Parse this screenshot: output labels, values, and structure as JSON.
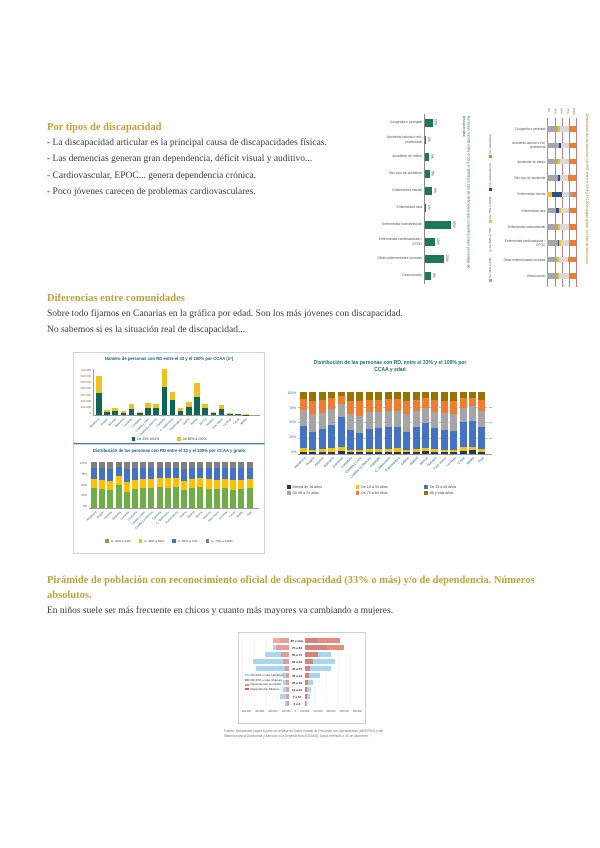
{
  "page": {
    "section1": {
      "heading": "Por tipos de discapacidad",
      "bullets": [
        "- La discapacidad articular es la principal causa de discapacidades físicas.",
        "- Las demencias generan gran dependencia, déficit visual y auditivo...",
        "- Cardiovascular, EPOC... genera dependencia crónica.",
        "- Poco jóvenes carecen de problemas cardiovasculares."
      ]
    },
    "section2": {
      "heading": "Diferencias entre comunidades",
      "lines": [
        "Sobre todo fijamos en Canarias en la gráfica por edad. Son los más jóvenes con discapacidad.",
        "No sabemos si es la situación real de discapacidad..."
      ]
    },
    "section3": {
      "heading": "Pirámide de población con reconocimiento oficial de discapacidad (33% o más) y/o de dependencia. Números absolutos.",
      "line": "En niños suele ser más frecuente en chicos y cuanto más mayores va cambiando a mujeres."
    },
    "caption": [
      "Fuente: elaboración propia a partir de la Base de Datos Estatal de Personas con Discapacidad (IMSERSO) y del",
      "Sistema para la Autonomía y Atención a la Dependencia (SISAAD). Datos referidos a 31 de diciembre."
    ]
  },
  "colors": {
    "heading_gold": "#C2A23A",
    "body_text": "#3A3A3A",
    "chart_title_teal": "#1F6E77",
    "green_bar": "#1B7A55"
  },
  "chart_data": [
    {
      "id": "deficiency_bar",
      "type": "bar",
      "orientation": "horizontal",
      "title": "Personas con RD entre el 33 y el 100% por tipo de deficiencia que concentra mayor porcentaje de discapacidad",
      "categories": [
        "Congénita o perinatal",
        "Accidente laboral o enf. profesional",
        "Accidente de tráfico",
        "Otro tipo de accidente",
        "Enfermedad mental",
        "Enfermedad rara",
        "Enfermedad osteoarticular",
        "Enfermedad cardiovascular / EPOC",
        "Otras enfermedades crónicas",
        "Desconocido"
      ],
      "values": [
        10,
        1,
        5,
        6,
        9,
        1,
        35,
        13,
        25,
        8
      ],
      "value_suffix": "%",
      "bar_color": "#1B7A55"
    },
    {
      "id": "deficiency_stacked",
      "type": "bar-stacked-100",
      "orientation": "horizontal",
      "title": "Distribución de las personas con RD entre el 33% y el 100% según grado, por tipo de deficiencia",
      "ticks": [
        "0%",
        "25%",
        "50%",
        "75%",
        "100%"
      ],
      "categories": [
        "Congénita o perinatal",
        "Accidente laboral o enf. profesional",
        "Accidente de tráfico",
        "Otro tipo de accidente",
        "Enfermedad mental",
        "Enfermedad rara",
        "Enfermedad osteoarticular",
        "Enfermedad cardiovascular / EPOC",
        "Otras enfermedades crónicas",
        "Desconocido"
      ],
      "rows": [
        [
          {
            "c": "#A6A6A6",
            "v": 36
          },
          {
            "c": "#FFC000",
            "v": 8
          },
          {
            "c": "#D9D9D9",
            "v": 30
          },
          {
            "c": "#ED7D31",
            "v": 26
          }
        ],
        [
          {
            "c": "#A6A6A6",
            "v": 40
          },
          {
            "c": "#2E4B8F",
            "v": 6
          },
          {
            "c": "#D9D9D9",
            "v": 28
          },
          {
            "c": "#ED7D31",
            "v": 26
          }
        ],
        [
          {
            "c": "#A6A6A6",
            "v": 38
          },
          {
            "c": "#FFC000",
            "v": 6
          },
          {
            "c": "#D9D9D9",
            "v": 30
          },
          {
            "c": "#ED7D31",
            "v": 26
          }
        ],
        [
          {
            "c": "#A6A6A6",
            "v": 36
          },
          {
            "c": "#2E4B8F",
            "v": 8
          },
          {
            "c": "#D9D9D9",
            "v": 28
          },
          {
            "c": "#ED7D31",
            "v": 28
          }
        ],
        [
          {
            "c": "#FFC000",
            "v": 16
          },
          {
            "c": "#2E4B8F",
            "v": 34
          },
          {
            "c": "#D9D9D9",
            "v": 26
          },
          {
            "c": "#A6A6A6",
            "v": 10
          },
          {
            "c": "#ED7D31",
            "v": 14
          }
        ],
        [
          {
            "c": "#A6A6A6",
            "v": 30
          },
          {
            "c": "#2E4B8F",
            "v": 12
          },
          {
            "c": "#FFC000",
            "v": 6
          },
          {
            "c": "#D9D9D9",
            "v": 26
          },
          {
            "c": "#ED7D31",
            "v": 26
          }
        ],
        [
          {
            "c": "#A6A6A6",
            "v": 38
          },
          {
            "c": "#FFC000",
            "v": 6
          },
          {
            "c": "#D9D9D9",
            "v": 30
          },
          {
            "c": "#ED7D31",
            "v": 26
          }
        ],
        [
          {
            "c": "#A6A6A6",
            "v": 36
          },
          {
            "c": "#2E4B8F",
            "v": 6
          },
          {
            "c": "#FFC000",
            "v": 6
          },
          {
            "c": "#D9D9D9",
            "v": 26
          },
          {
            "c": "#ED7D31",
            "v": 26
          }
        ],
        [
          {
            "c": "#A6A6A6",
            "v": 34
          },
          {
            "c": "#FFC000",
            "v": 8
          },
          {
            "c": "#D9D9D9",
            "v": 30
          },
          {
            "c": "#ED7D31",
            "v": 28
          }
        ],
        [
          {
            "c": "#A6A6A6",
            "v": 36
          },
          {
            "c": "#FFC000",
            "v": 6
          },
          {
            "c": "#D9D9D9",
            "v": 32
          },
          {
            "c": "#ED7D31",
            "v": 26
          }
        ]
      ],
      "legend": [
        {
          "label": "De 33% a 64%",
          "color": "#A6A6A6"
        },
        {
          "label": "De 65% a 74%",
          "color": "#D9D9D9"
        },
        {
          "label": "De 75% a 100%",
          "color": "#FFC000"
        },
        {
          "label": "Con dependencia",
          "color": "#2E4B8F"
        },
        {
          "label": "Sin especificar",
          "color": "#ED7D31"
        }
      ]
    },
    {
      "id": "ccaa_totals",
      "type": "bar-stacked",
      "orientation": "vertical",
      "title": "Número de personas con RD entre el 33 y el 100% por CCAA (nº)",
      "y_ticks": [
        "700.000",
        "600.000",
        "500.000",
        "400.000",
        "300.000",
        "200.000",
        "100.000",
        "0"
      ],
      "ymax": 700,
      "categories": [
        "Andalucía",
        "Aragón",
        "Asturias",
        "Baleares",
        "Canarias",
        "Cantabria",
        "Castilla y León",
        "Castilla-La Mancha",
        "Cataluña",
        "C. Valenciana",
        "Extremadura",
        "Galicia",
        "Madrid",
        "Murcia",
        "Navarra",
        "País Vasco",
        "La Rioja",
        "Ceuta",
        "Melilla"
      ],
      "series": [
        {
          "name": "De 33% a 64%",
          "color": "#0E6655",
          "values": [
            330,
            45,
            60,
            35,
            95,
            30,
            105,
            100,
            420,
            230,
            60,
            120,
            270,
            105,
            30,
            90,
            20,
            8,
            7
          ]
        },
        {
          "name": "De 65% a 100%",
          "color": "#F0C020",
          "values": [
            260,
            35,
            45,
            25,
            75,
            22,
            85,
            75,
            280,
            120,
            45,
            85,
            210,
            70,
            20,
            65,
            12,
            5,
            5
          ]
        }
      ]
    },
    {
      "id": "ccaa_age",
      "type": "bar-stacked-100",
      "orientation": "vertical",
      "title": "Distribución de las personas con RD, entre el 33% y el 100% por CCAA y edad",
      "y_ticks": [
        "100%",
        "75%",
        "50%",
        "25%",
        "0%"
      ],
      "categories": [
        "Andalucía",
        "Aragón",
        "Asturias",
        "Baleares",
        "Canarias",
        "Cantabria",
        "Castilla y León",
        "Castilla-La Mancha",
        "Cataluña",
        "C. Valenciana",
        "Extremadura",
        "Galicia",
        "Madrid",
        "Murcia",
        "Navarra",
        "País Vasco",
        "La Rioja",
        "Ceuta",
        "Melilla",
        "Total"
      ],
      "series": [
        {
          "name": "Menos de 16 años",
          "color": "#1F3864",
          "values": [
            4,
            3,
            4,
            4,
            5,
            3,
            3,
            4,
            4,
            4,
            4,
            3,
            4,
            5,
            4,
            3,
            3,
            5,
            6,
            4
          ]
        },
        {
          "name": "De 16 a 34 años",
          "color": "#FFC000",
          "values": [
            5,
            3,
            4,
            5,
            6,
            3,
            3,
            4,
            4,
            4,
            5,
            3,
            4,
            5,
            4,
            3,
            3,
            6,
            6,
            4
          ]
        },
        {
          "name": "De 35 a 64 años",
          "color": "#4472C4",
          "values": [
            36,
            30,
            32,
            38,
            48,
            32,
            28,
            33,
            34,
            36,
            35,
            30,
            35,
            40,
            34,
            33,
            31,
            40,
            42,
            35
          ]
        },
        {
          "name": "De 65 a 74 años",
          "color": "#A5A5A5",
          "values": [
            26,
            28,
            27,
            26,
            22,
            27,
            28,
            27,
            26,
            26,
            26,
            28,
            26,
            24,
            26,
            27,
            28,
            24,
            23,
            26
          ]
        },
        {
          "name": "De 75 a 84 años",
          "color": "#ED7D31",
          "values": [
            18,
            22,
            20,
            17,
            13,
            21,
            23,
            19,
            19,
            18,
            18,
            22,
            18,
            16,
            19,
            20,
            21,
            15,
            14,
            19
          ]
        },
        {
          "name": "85 y más años",
          "color": "#997300",
          "values": [
            11,
            14,
            13,
            10,
            6,
            14,
            15,
            13,
            13,
            12,
            12,
            14,
            13,
            10,
            13,
            14,
            14,
            10,
            9,
            12
          ]
        }
      ]
    },
    {
      "id": "ccaa_grade",
      "type": "bar-stacked-100",
      "orientation": "vertical",
      "title": "Distribución de las personas con RD entre el 33 y el 100% por CCAA y grado",
      "y_ticks": [
        "100%",
        "75%",
        "50%",
        "25%",
        "0%"
      ],
      "categories": [
        "Andalucía",
        "Aragón",
        "Asturias",
        "Baleares",
        "Canarias",
        "Cantabria",
        "Castilla y León",
        "Castilla-La Mancha",
        "Cataluña",
        "C. Valenciana",
        "Extremadura",
        "Galicia",
        "Madrid",
        "Murcia",
        "Navarra",
        "País Vasco",
        "La Rioja",
        "Ceuta",
        "Melilla",
        "Total"
      ],
      "series": [
        {
          "name": "G. 33% a 44%",
          "color": "#70AD47",
          "values": [
            44,
            42,
            40,
            50,
            34,
            42,
            44,
            43,
            45,
            44,
            46,
            40,
            44,
            46,
            42,
            41,
            43,
            40,
            42,
            44
          ]
        },
        {
          "name": "G. 45% a 64%",
          "color": "#FFC000",
          "values": [
            20,
            20,
            19,
            20,
            22,
            20,
            20,
            20,
            20,
            21,
            20,
            19,
            20,
            20,
            21,
            20,
            20,
            21,
            20,
            20
          ]
        },
        {
          "name": "G. 65% a 74%",
          "color": "#4472C4",
          "values": [
            23,
            24,
            26,
            19,
            28,
            24,
            22,
            23,
            22,
            22,
            21,
            26,
            22,
            21,
            23,
            25,
            23,
            25,
            24,
            23
          ]
        },
        {
          "name": "G. 75% a 100%",
          "color": "#7F7F7F",
          "values": [
            13,
            14,
            15,
            11,
            16,
            14,
            14,
            14,
            13,
            13,
            13,
            15,
            14,
            13,
            14,
            14,
            14,
            14,
            14,
            13
          ]
        }
      ]
    },
    {
      "id": "pyramid",
      "type": "pyramid",
      "unit": "personas",
      "xmax": 500,
      "age_groups": [
        "85 y más",
        "75 a 84",
        "65 a 74",
        "55 a 64",
        "45 a 54",
        "35 a 44",
        "25 a 34",
        "16 a 24",
        "7 a 15",
        "0 a 6"
      ],
      "series": [
        {
          "name": "RD 33% o más. Hombres",
          "side": "left",
          "kind": "rd",
          "color": "#A9D6EE",
          "values": [
            90,
            150,
            230,
            340,
            310,
            180,
            110,
            90,
            90,
            35
          ]
        },
        {
          "name": "Dependencia. Hombres",
          "side": "left",
          "kind": "dep",
          "color": "#F0907E",
          "values": [
            150,
            120,
            80,
            60,
            40,
            30,
            25,
            25,
            30,
            15
          ]
        },
        {
          "name": "RD 33% o más. Mujeres",
          "side": "right",
          "kind": "rd",
          "color": "#A9D6EE",
          "values": [
            120,
            210,
            250,
            290,
            250,
            140,
            80,
            60,
            50,
            20
          ]
        },
        {
          "name": "Dependencia. Mujeres",
          "side": "right",
          "kind": "dep",
          "color": "#E26B5A",
          "values": [
            330,
            370,
            120,
            80,
            50,
            35,
            25,
            20,
            18,
            10
          ]
        }
      ],
      "legend": [
        {
          "label": "RD 33% o más. Hombres",
          "color": "#A9D6EE"
        },
        {
          "label": "RD 33% o más. Mujeres",
          "color": "#74B9DC"
        },
        {
          "label": "Dependencia. Hombres",
          "color": "#F0907E"
        },
        {
          "label": "Dependencia. Mujeres",
          "color": "#D95F4C"
        }
      ],
      "x_ticks": [
        "400.000",
        "300.000",
        "200.000",
        "100.000",
        "0",
        "100.000",
        "200.000",
        "300.000",
        "400.000",
        "500.000"
      ]
    }
  ]
}
